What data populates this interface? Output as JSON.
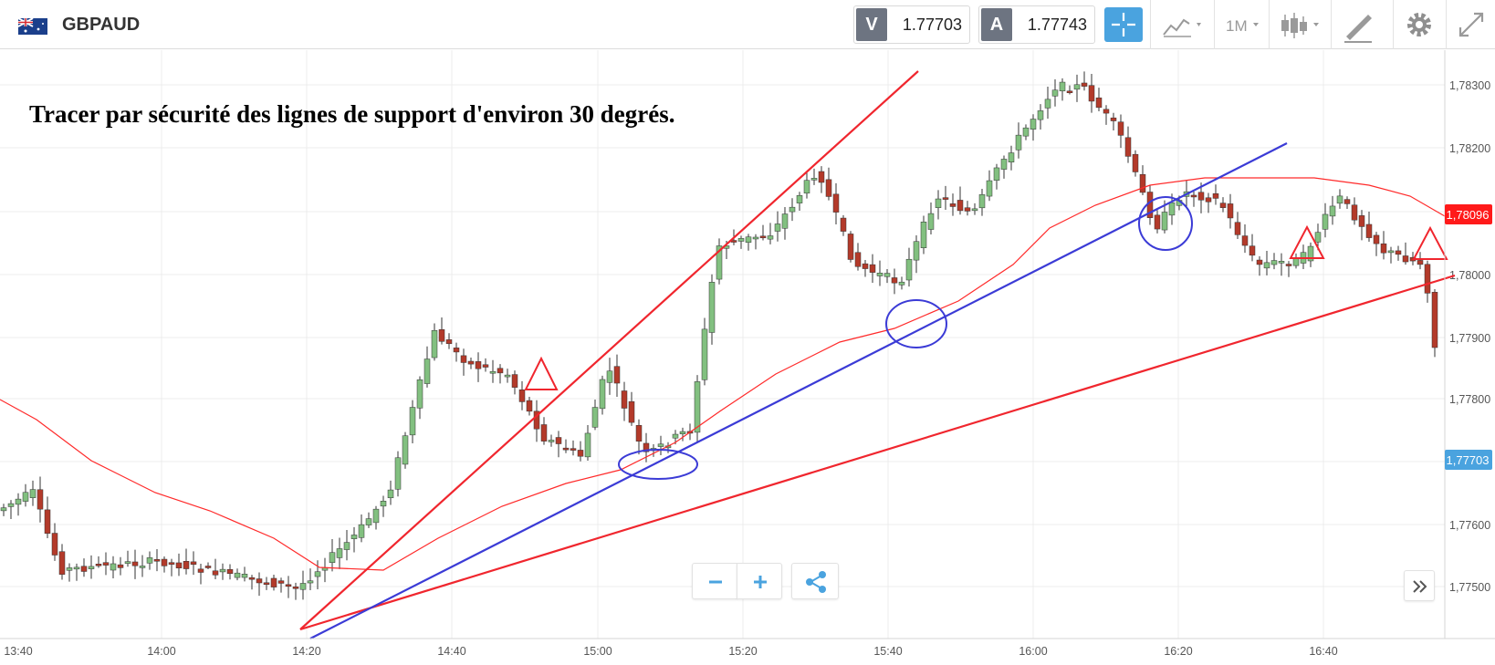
{
  "symbol": "GBPAUD",
  "sell": {
    "label": "V",
    "price": "1.77703"
  },
  "buy": {
    "label": "A",
    "price": "1.77743"
  },
  "timeframe": "1M",
  "annotation": "Tracer par sécurité des lignes de support d'environ 30 degrés.",
  "colors": {
    "up": "#82c080",
    "down": "#b33a2a",
    "ma": "#ff2a2a",
    "blue_line": "#3b3bd6",
    "red_line": "#f0262e",
    "accent": "#4aa3df",
    "last_price": "#4aa3df",
    "ma_tag": "#ff1a1a"
  },
  "icons": [
    "gb-au-flag-icon",
    "crosshair-icon",
    "line-chart-icon",
    "candlestick-icon",
    "draw-tool-icon",
    "gear-icon",
    "expand-icon",
    "zoom-out-icon",
    "zoom-in-icon",
    "share-icon",
    "double-chevron-right-icon"
  ],
  "chart_data": {
    "type": "candlestick",
    "xlabel": "",
    "ylabel": "",
    "x_tick_labels": [
      "13:40",
      "14:00",
      "14:20",
      "14:40",
      "15:00",
      "15:20",
      "15:40",
      "16:00",
      "16:20",
      "16:40"
    ],
    "y_tick_labels": [
      "1,78300",
      "1,78200",
      "1,78000",
      "1,77900",
      "1,77800",
      "1,77600",
      "1,77500"
    ],
    "ylim": [
      1.7742,
      1.7836
    ],
    "y_price_tags": [
      {
        "text": "1,78096",
        "value": 1.78096,
        "role": "moving-average"
      },
      {
        "text": "1,77703",
        "value": 1.77703,
        "role": "last-price"
      }
    ],
    "grid": true,
    "legend": "none"
  }
}
